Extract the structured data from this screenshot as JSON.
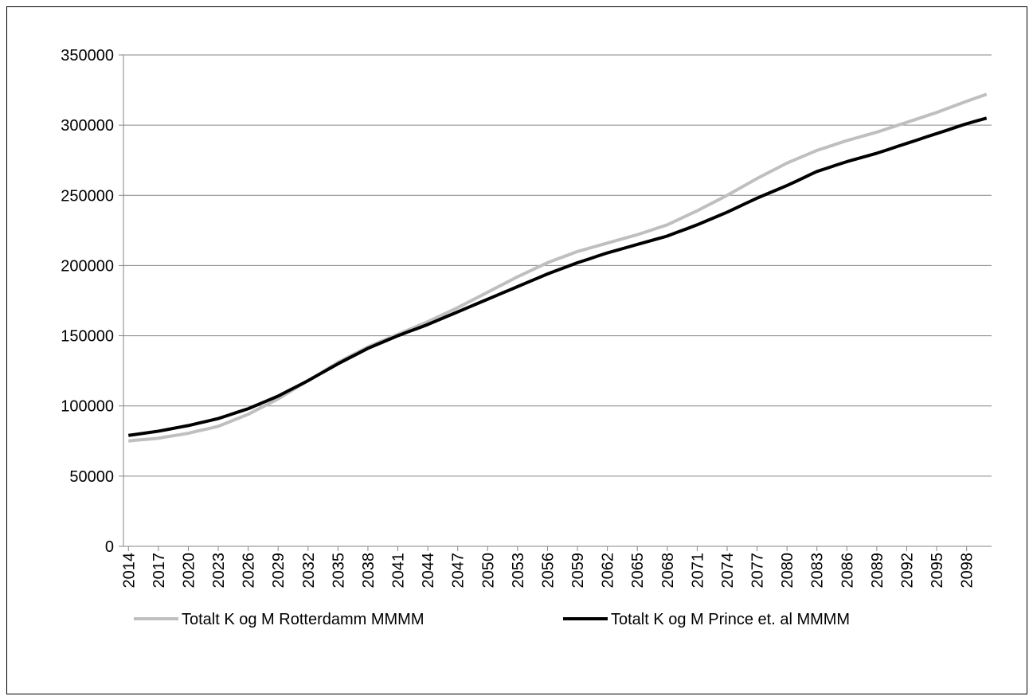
{
  "chart_data": {
    "type": "line",
    "x": [
      2014,
      2015,
      2016,
      2017,
      2018,
      2019,
      2020,
      2021,
      2022,
      2023,
      2024,
      2025,
      2026,
      2027,
      2028,
      2029,
      2030,
      2031,
      2032,
      2033,
      2034,
      2035,
      2036,
      2037,
      2038,
      2039,
      2040,
      2041,
      2042,
      2043,
      2044,
      2045,
      2046,
      2047,
      2048,
      2049,
      2050,
      2051,
      2052,
      2053,
      2054,
      2055,
      2056,
      2057,
      2058,
      2059,
      2060,
      2061,
      2062,
      2063,
      2064,
      2065,
      2066,
      2067,
      2068,
      2069,
      2070,
      2071,
      2072,
      2073,
      2074,
      2075,
      2076,
      2077,
      2078,
      2079,
      2080,
      2081,
      2082,
      2083,
      2084,
      2085,
      2086,
      2087,
      2088,
      2089,
      2090,
      2091,
      2092,
      2093,
      2094,
      2095,
      2096,
      2097,
      2098,
      2099,
      2100
    ],
    "series": [
      {
        "name": "Totalt K og M Rotterdamm MMMM",
        "color": "#bfbfbf",
        "values": [
          75000,
          75700,
          76300,
          77000,
          78200,
          79300,
          80500,
          82200,
          83800,
          85500,
          88300,
          91200,
          94000,
          97700,
          101300,
          105000,
          109300,
          113700,
          118000,
          122300,
          126700,
          131000,
          134700,
          138300,
          142000,
          145000,
          148000,
          151000,
          154000,
          157000,
          160000,
          163300,
          166700,
          170000,
          173700,
          177300,
          181000,
          184700,
          188300,
          192000,
          195300,
          198700,
          202000,
          204700,
          207300,
          210000,
          212000,
          214000,
          216000,
          218000,
          220000,
          222000,
          224300,
          226700,
          229000,
          232300,
          235700,
          239000,
          242700,
          246300,
          250000,
          254000,
          258000,
          262000,
          265700,
          269300,
          273000,
          276000,
          279000,
          282000,
          284300,
          286700,
          289000,
          291000,
          293000,
          295000,
          297300,
          299700,
          302000,
          304300,
          306700,
          309000,
          311700,
          314300,
          317000,
          319500,
          322000
        ]
      },
      {
        "name": "Totalt K og M Prince et. al MMMM",
        "color": "#000000",
        "values": [
          79000,
          80000,
          81000,
          82000,
          83300,
          84700,
          86000,
          87700,
          89300,
          91000,
          93300,
          95700,
          98000,
          101000,
          104000,
          107000,
          110700,
          114300,
          118000,
          122000,
          126000,
          130000,
          133700,
          137300,
          141000,
          144000,
          147000,
          150000,
          152700,
          155300,
          158000,
          161000,
          164000,
          167000,
          170000,
          173000,
          176000,
          179000,
          182000,
          185000,
          188000,
          191000,
          194000,
          196700,
          199300,
          202000,
          204300,
          206700,
          209000,
          211000,
          213000,
          215000,
          217000,
          219000,
          221000,
          223700,
          226300,
          229000,
          232000,
          235000,
          238000,
          241300,
          244700,
          248000,
          251000,
          254000,
          257000,
          260300,
          263700,
          267000,
          269300,
          271700,
          274000,
          276000,
          278000,
          280000,
          282300,
          284700,
          287000,
          289300,
          291700,
          294000,
          296300,
          298700,
          301000,
          303000,
          305000
        ]
      }
    ],
    "xlim": [
      2013.5,
      2100.5
    ],
    "xticks": [
      2014,
      2017,
      2020,
      2023,
      2026,
      2029,
      2032,
      2035,
      2038,
      2041,
      2044,
      2047,
      2050,
      2053,
      2056,
      2059,
      2062,
      2065,
      2068,
      2071,
      2074,
      2077,
      2080,
      2083,
      2086,
      2089,
      2092,
      2095,
      2098
    ],
    "ylim": [
      0,
      350000
    ],
    "yticks": [
      0,
      50000,
      100000,
      150000,
      200000,
      250000,
      300000,
      350000
    ],
    "grid": true,
    "legend": "bottom"
  }
}
